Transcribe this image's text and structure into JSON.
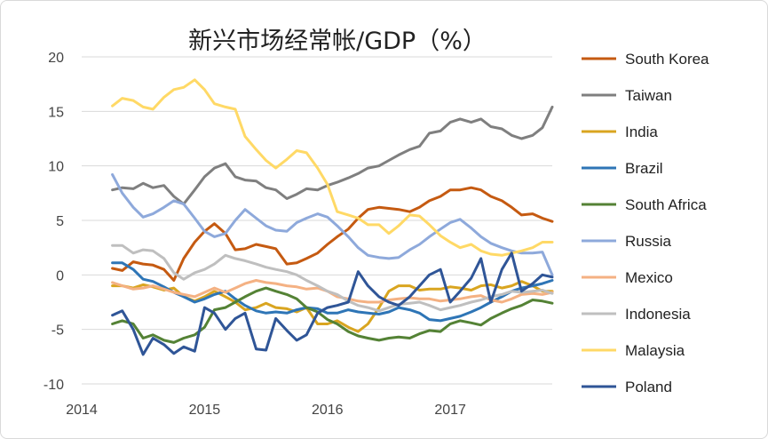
{
  "chart_data": {
    "type": "line",
    "title": "新兴市场经常帐/GDP（%）",
    "xlabel": "",
    "ylabel": "",
    "xlim": [
      2014.0,
      2017.83
    ],
    "ylim": [
      -10,
      20
    ],
    "yticks": [
      "20",
      "15",
      "10",
      "5",
      "0",
      "-5",
      "-10"
    ],
    "yticks_values": [
      20,
      15,
      10,
      5,
      0,
      -5,
      -10
    ],
    "xticks": [
      "2014",
      "2015",
      "2016",
      "2017"
    ],
    "xticks_values": [
      2014,
      2015,
      2016,
      2017
    ],
    "grid": "horizontal",
    "legend_position": "right",
    "x": [
      2014.25,
      2014.33,
      2014.42,
      2014.5,
      2014.58,
      2014.67,
      2014.75,
      2014.83,
      2014.92,
      2015.0,
      2015.08,
      2015.17,
      2015.25,
      2015.33,
      2015.42,
      2015.5,
      2015.58,
      2015.67,
      2015.75,
      2015.83,
      2015.92,
      2016.0,
      2016.08,
      2016.17,
      2016.25,
      2016.33,
      2016.42,
      2016.5,
      2016.58,
      2016.67,
      2016.75,
      2016.83,
      2016.92,
      2017.0,
      2017.08,
      2017.17,
      2017.25,
      2017.33,
      2017.42,
      2017.5,
      2017.58,
      2017.67,
      2017.75,
      2017.83
    ],
    "series": [
      {
        "name": "South Korea",
        "color": "#c55a11",
        "values": [
          0.6,
          0.4,
          1.2,
          1.0,
          0.9,
          0.5,
          -0.5,
          1.5,
          3.0,
          4.0,
          4.7,
          3.8,
          2.3,
          2.4,
          2.8,
          2.6,
          2.4,
          1.0,
          1.1,
          1.5,
          2.0,
          2.8,
          3.5,
          4.2,
          5.2,
          6.0,
          6.2,
          6.1,
          6.0,
          5.8,
          6.2,
          6.8,
          7.2,
          7.8,
          7.8,
          8.0,
          7.8,
          7.2,
          6.8,
          6.2,
          5.5,
          5.6,
          5.2,
          4.9
        ]
      },
      {
        "name": "Taiwan",
        "color": "#7f7f7f",
        "values": [
          7.8,
          8.0,
          7.9,
          8.4,
          8.0,
          8.2,
          7.2,
          6.5,
          7.8,
          9.0,
          9.8,
          10.2,
          9.0,
          8.7,
          8.6,
          8.0,
          7.8,
          7.0,
          7.4,
          7.9,
          7.8,
          8.2,
          8.5,
          8.9,
          9.3,
          9.8,
          10.0,
          10.5,
          11.0,
          11.5,
          11.8,
          13.0,
          13.2,
          14.0,
          14.3,
          14.0,
          14.3,
          13.6,
          13.4,
          12.8,
          12.5,
          12.8,
          13.5,
          15.4
        ]
      },
      {
        "name": "India",
        "color": "#d9a520",
        "values": [
          -1.0,
          -1.0,
          -1.2,
          -0.9,
          -1.1,
          -1.4,
          -1.2,
          -2.0,
          -2.4,
          -2.0,
          -1.5,
          -2.0,
          -2.5,
          -3.2,
          -3.0,
          -2.6,
          -3.0,
          -3.1,
          -3.4,
          -3.0,
          -4.5,
          -4.5,
          -4.2,
          -4.8,
          -5.2,
          -4.5,
          -3.0,
          -1.5,
          -1.0,
          -1.0,
          -1.4,
          -1.3,
          -1.3,
          -1.1,
          -1.2,
          -1.4,
          -1.0,
          -0.9,
          -1.2,
          -1.0,
          -0.6,
          -1.0,
          -1.5,
          -1.5
        ]
      },
      {
        "name": "Brazil",
        "color": "#2e75b6",
        "values": [
          1.1,
          1.1,
          0.5,
          -0.4,
          -0.6,
          -1.1,
          -1.6,
          -2.0,
          -2.5,
          -2.2,
          -1.8,
          -1.5,
          -2.2,
          -2.8,
          -3.3,
          -3.5,
          -3.4,
          -3.5,
          -3.2,
          -3.0,
          -3.1,
          -3.5,
          -3.5,
          -3.2,
          -3.4,
          -3.5,
          -3.6,
          -3.4,
          -3.0,
          -3.2,
          -3.5,
          -4.1,
          -4.2,
          -4.0,
          -3.8,
          -3.4,
          -3.0,
          -2.5,
          -2.0,
          -1.5,
          -1.2,
          -1.0,
          -0.8,
          -0.5
        ]
      },
      {
        "name": "South Africa",
        "color": "#548235",
        "values": [
          -4.5,
          -4.2,
          -4.5,
          -5.8,
          -5.5,
          -6.0,
          -6.2,
          -5.8,
          -5.5,
          -4.8,
          -3.2,
          -3.0,
          -2.5,
          -2.0,
          -1.5,
          -1.2,
          -1.5,
          -1.8,
          -2.2,
          -3.0,
          -3.4,
          -4.1,
          -4.5,
          -5.2,
          -5.6,
          -5.8,
          -6.0,
          -5.8,
          -5.7,
          -5.8,
          -5.4,
          -5.1,
          -5.2,
          -4.5,
          -4.2,
          -4.4,
          -4.6,
          -4.0,
          -3.5,
          -3.1,
          -2.8,
          -2.3,
          -2.4,
          -2.6
        ]
      },
      {
        "name": "Russia",
        "color": "#8ea9db",
        "values": [
          9.2,
          7.5,
          6.2,
          5.3,
          5.6,
          6.2,
          6.8,
          6.5,
          5.2,
          4.0,
          3.5,
          3.8,
          5.0,
          6.0,
          5.2,
          4.5,
          4.1,
          4.0,
          4.8,
          5.2,
          5.6,
          5.3,
          4.5,
          3.5,
          2.5,
          1.8,
          1.6,
          1.5,
          1.6,
          2.3,
          2.8,
          3.5,
          4.2,
          4.8,
          5.1,
          4.3,
          3.5,
          2.9,
          2.5,
          2.2,
          2.0,
          2.0,
          2.1,
          0.0
        ]
      },
      {
        "name": "Mexico",
        "color": "#f4b183",
        "values": [
          -0.7,
          -1.0,
          -1.3,
          -1.2,
          -1.0,
          -1.3,
          -1.6,
          -1.8,
          -2.0,
          -1.6,
          -1.2,
          -1.6,
          -1.2,
          -0.8,
          -0.5,
          -0.7,
          -0.8,
          -1.0,
          -1.1,
          -1.3,
          -1.2,
          -1.5,
          -2.0,
          -2.2,
          -2.4,
          -2.5,
          -2.5,
          -2.3,
          -2.2,
          -2.1,
          -2.2,
          -2.2,
          -2.4,
          -2.3,
          -2.2,
          -2.0,
          -1.9,
          -2.3,
          -2.5,
          -2.2,
          -1.8,
          -1.7,
          -1.8,
          -1.6
        ]
      },
      {
        "name": "Indonesia",
        "color": "#bfbfbf",
        "values": [
          2.7,
          2.7,
          2.0,
          2.3,
          2.2,
          1.5,
          0.2,
          -0.4,
          0.2,
          0.5,
          1.0,
          1.8,
          1.5,
          1.3,
          1.0,
          0.7,
          0.5,
          0.3,
          0.0,
          -0.5,
          -1.0,
          -1.5,
          -1.8,
          -2.4,
          -2.8,
          -3.0,
          -3.3,
          -3.0,
          -2.7,
          -2.6,
          -2.5,
          -2.8,
          -3.2,
          -3.0,
          -2.8,
          -2.5,
          -2.3,
          -2.0,
          -1.8,
          -1.5,
          -1.6,
          -1.5,
          -1.4,
          -1.7
        ]
      },
      {
        "name": "Malaysia",
        "color": "#ffd966",
        "values": [
          15.5,
          16.2,
          16.0,
          15.4,
          15.2,
          16.3,
          17.0,
          17.2,
          17.9,
          17.0,
          15.7,
          15.4,
          15.2,
          12.7,
          11.5,
          10.5,
          9.8,
          10.6,
          11.4,
          11.2,
          9.8,
          8.3,
          5.8,
          5.5,
          5.2,
          4.6,
          4.6,
          3.8,
          4.5,
          5.5,
          5.4,
          4.6,
          3.6,
          3.0,
          2.5,
          2.8,
          2.2,
          1.9,
          1.8,
          2.0,
          2.2,
          2.5,
          3.0,
          3.0
        ]
      },
      {
        "name": "Poland",
        "color": "#2f5597",
        "values": [
          -3.7,
          -3.3,
          -5.0,
          -7.3,
          -5.8,
          -6.4,
          -7.2,
          -6.6,
          -7.0,
          -3.0,
          -3.5,
          -5.0,
          -4.0,
          -3.5,
          -6.8,
          -6.9,
          -4.0,
          -5.1,
          -6.0,
          -5.5,
          -3.5,
          -3.0,
          -2.8,
          -2.5,
          0.3,
          -1.0,
          -2.0,
          -2.5,
          -2.8,
          -2.0,
          -1.0,
          0.0,
          0.5,
          -2.5,
          -1.5,
          -0.3,
          1.5,
          -2.5,
          0.5,
          2.0,
          -1.5,
          -0.8,
          0.0,
          -0.2
        ]
      }
    ]
  }
}
